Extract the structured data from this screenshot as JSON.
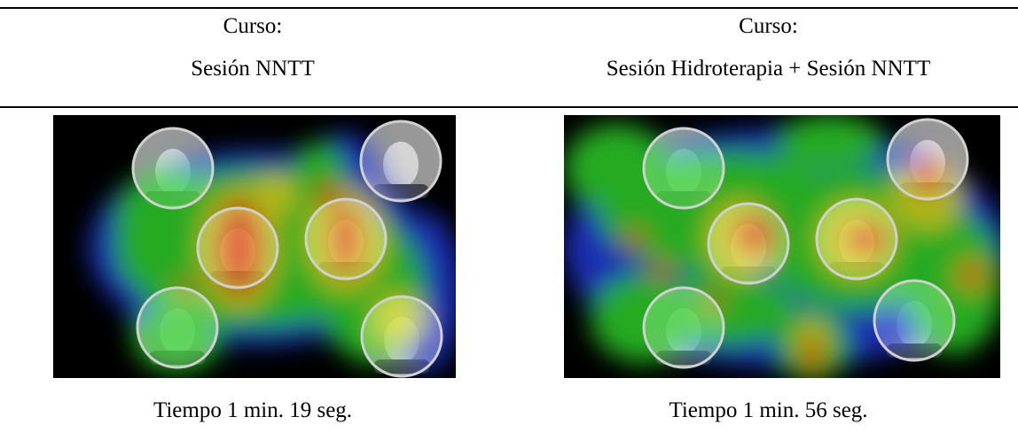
{
  "columns": [
    {
      "label": "Curso:",
      "course": "Sesión NNTT",
      "time": "Tiempo 1 min. 19 seg."
    },
    {
      "label": "Curso:",
      "course": "Sesión Hidroterapia + Sesión NNTT",
      "time": "Tiempo 1 min. 56 seg."
    }
  ]
}
